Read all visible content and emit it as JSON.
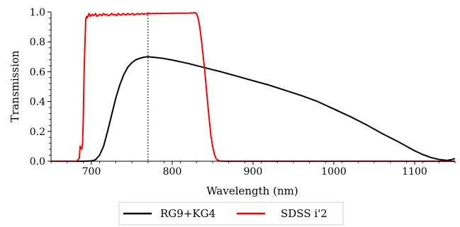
{
  "chart_data": {
    "type": "line",
    "title": "",
    "xlabel": "Wavelength (nm)",
    "ylabel": "Transmission",
    "xlim": [
      650,
      1150
    ],
    "ylim": [
      0.0,
      1.0
    ],
    "xticks": [
      {
        "value": 700,
        "label": "700"
      },
      {
        "value": 800,
        "label": "800"
      },
      {
        "value": 900,
        "label": "900"
      },
      {
        "value": 1000,
        "label": "1000"
      },
      {
        "value": 1100,
        "label": "1100"
      }
    ],
    "yticks": [
      {
        "value": 0.0,
        "label": "0.0"
      },
      {
        "value": 0.2,
        "label": "0.2"
      },
      {
        "value": 0.4,
        "label": "0.4"
      },
      {
        "value": 0.6,
        "label": "0.6"
      },
      {
        "value": 0.8,
        "label": "0.8"
      },
      {
        "value": 1.0,
        "label": "1.0"
      }
    ],
    "vline": {
      "x": 770,
      "style": "dotted"
    },
    "grid": false,
    "legend_position": "below",
    "series": [
      {
        "name": "RG9+KG4",
        "color": "#000000",
        "x": [
          650,
          690,
          700,
          705,
          710,
          715,
          720,
          725,
          730,
          735,
          740,
          745,
          750,
          755,
          760,
          765,
          770,
          780,
          790,
          800,
          820,
          840,
          860,
          880,
          900,
          920,
          940,
          960,
          980,
          1000,
          1020,
          1040,
          1060,
          1080,
          1100,
          1110,
          1120,
          1130,
          1140,
          1145,
          1150
        ],
        "y": [
          0.0,
          0.0,
          0.002,
          0.01,
          0.04,
          0.1,
          0.2,
          0.31,
          0.42,
          0.51,
          0.58,
          0.63,
          0.66,
          0.68,
          0.69,
          0.697,
          0.7,
          0.695,
          0.688,
          0.678,
          0.655,
          0.627,
          0.6,
          0.57,
          0.54,
          0.51,
          0.475,
          0.44,
          0.4,
          0.35,
          0.3,
          0.245,
          0.185,
          0.13,
          0.07,
          0.045,
          0.025,
          0.012,
          0.005,
          0.01,
          0.018
        ]
      },
      {
        "name": "SDSS i'2",
        "color": "#ff0000",
        "x": [
          650,
          682,
          685,
          686,
          688,
          689,
          690,
          691,
          692,
          693,
          694,
          695,
          697,
          699,
          701,
          703,
          705,
          707,
          709,
          711,
          713,
          715,
          717,
          719,
          721,
          723,
          725,
          727,
          729,
          731,
          733,
          735,
          737,
          739,
          741,
          743,
          745,
          747,
          749,
          751,
          753,
          755,
          757,
          759,
          761,
          763,
          765,
          767,
          769,
          771,
          773,
          775,
          777,
          779,
          781,
          783,
          785,
          787,
          789,
          791,
          793,
          795,
          797,
          799,
          801,
          803,
          805,
          807,
          809,
          811,
          813,
          815,
          817,
          819,
          821,
          823,
          825,
          827,
          829,
          830,
          832,
          834,
          836,
          838,
          840,
          842,
          844,
          846,
          848,
          850,
          852,
          854,
          856,
          858,
          860,
          865,
          870,
          900,
          1000,
          1100,
          1150
        ],
        "y": [
          0.0,
          0.0,
          0.02,
          0.1,
          0.08,
          0.12,
          0.3,
          0.6,
          0.8,
          0.95,
          0.97,
          0.96,
          0.99,
          0.97,
          0.985,
          0.975,
          0.99,
          0.97,
          0.98,
          0.985,
          0.975,
          0.99,
          0.98,
          0.985,
          0.975,
          0.98,
          0.99,
          0.98,
          0.985,
          0.975,
          0.99,
          0.982,
          0.978,
          0.99,
          0.985,
          0.98,
          0.99,
          0.982,
          0.985,
          0.99,
          0.98,
          0.985,
          0.99,
          0.983,
          0.987,
          0.99,
          0.985,
          0.99,
          0.985,
          0.992,
          0.988,
          0.99,
          0.99,
          0.988,
          0.992,
          0.99,
          0.99,
          0.991,
          0.99,
          0.992,
          0.99,
          0.991,
          0.992,
          0.99,
          0.993,
          0.991,
          0.992,
          0.993,
          0.991,
          0.992,
          0.993,
          0.992,
          0.992,
          0.993,
          0.992,
          0.994,
          0.993,
          0.995,
          0.994,
          0.99,
          0.96,
          0.9,
          0.82,
          0.72,
          0.62,
          0.5,
          0.38,
          0.27,
          0.17,
          0.1,
          0.05,
          0.02,
          0.008,
          0.003,
          0.001,
          0.0,
          0.0,
          0.0,
          0.0,
          0.0,
          0.0
        ]
      }
    ]
  }
}
